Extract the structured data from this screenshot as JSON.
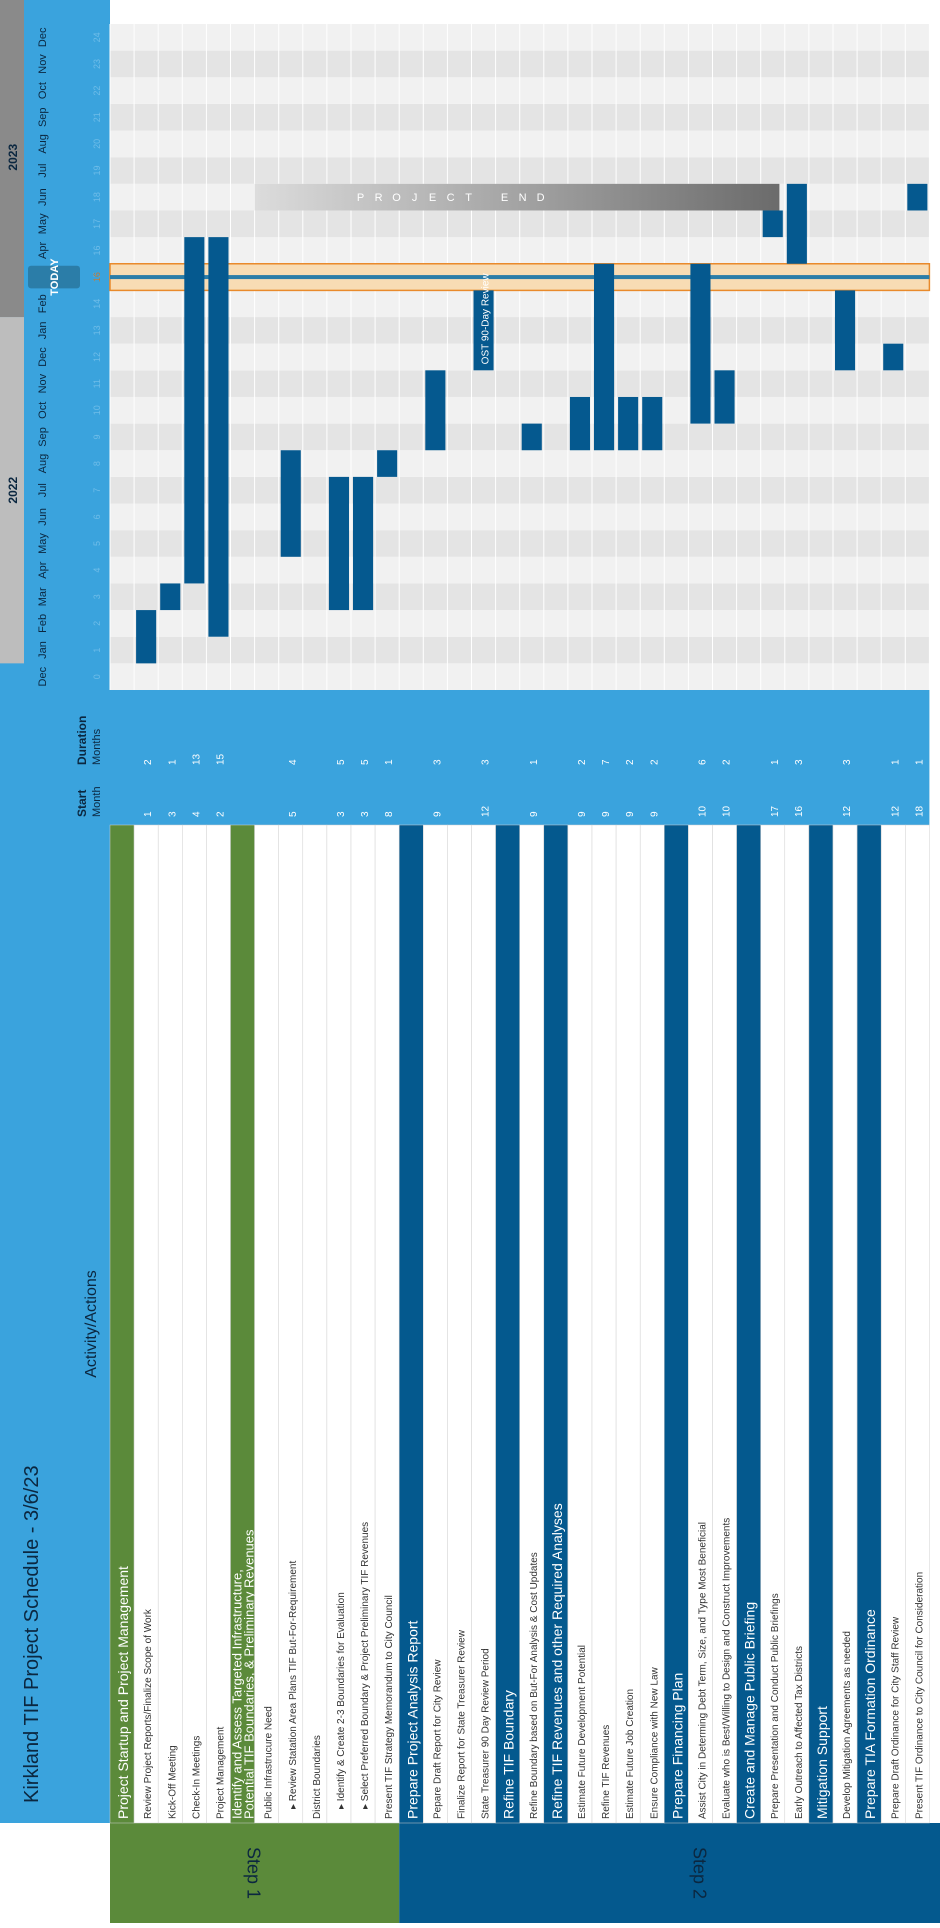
{
  "title": "Kirkland TIF Project Schedule - 3/6/23",
  "column_headers": {
    "activity": "Activity/Actions",
    "start": "Start",
    "start_sub": "Month",
    "duration": "Duration",
    "duration_sub": "Months"
  },
  "steps": [
    {
      "label": "Step 1",
      "color": "#5b8a3a",
      "start_row": 0,
      "end_row": 11
    },
    {
      "label": "Step 2",
      "color": "#04598e",
      "start_row": 12,
      "end_row": 36
    }
  ],
  "years": [
    {
      "label": "2022",
      "from_month": 1,
      "to_month": 13
    },
    {
      "label": "2023",
      "from_month": 14,
      "to_month": 25
    }
  ],
  "months": [
    {
      "name": "Dec",
      "index": "0"
    },
    {
      "name": "Jan",
      "index": "1"
    },
    {
      "name": "Feb",
      "index": "2"
    },
    {
      "name": "Mar",
      "index": "3"
    },
    {
      "name": "Apr",
      "index": "4"
    },
    {
      "name": "May",
      "index": "5"
    },
    {
      "name": "Jun",
      "index": "6"
    },
    {
      "name": "Jul",
      "index": "7"
    },
    {
      "name": "Aug",
      "index": "8"
    },
    {
      "name": "Sep",
      "index": "9"
    },
    {
      "name": "Oct",
      "index": "10"
    },
    {
      "name": "Nov",
      "index": "11"
    },
    {
      "name": "Dec",
      "index": "12"
    },
    {
      "name": "Jan",
      "index": "13"
    },
    {
      "name": "Feb",
      "index": "14"
    },
    {
      "name": "Mar",
      "index": "15"
    },
    {
      "name": "Apr",
      "index": "16"
    },
    {
      "name": "May",
      "index": "17"
    },
    {
      "name": "Jun",
      "index": "18"
    },
    {
      "name": "Jul",
      "index": "19"
    },
    {
      "name": "Aug",
      "index": "20"
    },
    {
      "name": "Sep",
      "index": "21"
    },
    {
      "name": "Oct",
      "index": "22"
    },
    {
      "name": "Nov",
      "index": "23"
    },
    {
      "name": "Dec",
      "index": "24"
    }
  ],
  "today": {
    "label": "TODAY",
    "month_index": 15,
    "marker_value": "16"
  },
  "project_end": {
    "letters": [
      "P",
      "R",
      "O",
      "J",
      "E",
      "C",
      "T",
      "",
      "E",
      "N",
      "D"
    ],
    "from_month": 18
  },
  "rows": [
    {
      "text": "Project Startup and Project Management",
      "kind": "section",
      "color": "#5b8a3a",
      "start": "",
      "duration": ""
    },
    {
      "text": "Review Project Reports/Finalize Scope of Work",
      "kind": "task",
      "start": "1",
      "duration": "2"
    },
    {
      "text": "Kick-Off Meeting",
      "kind": "task",
      "start": "3",
      "duration": "1"
    },
    {
      "text": "Check-In Meetings",
      "kind": "task",
      "start": "4",
      "duration": "13"
    },
    {
      "text": "Project Management",
      "kind": "task",
      "start": "2",
      "duration": "15"
    },
    {
      "text": "Identify and Assess Targeted Infrastructure,",
      "text2": "Potential TIF Boundaries, & Preliminary Revenues",
      "kind": "section2",
      "color": "#5b8a3a",
      "start": "",
      "duration": ""
    },
    {
      "text": "Public Infrastrucure Need",
      "kind": "task",
      "start": "",
      "duration": ""
    },
    {
      "text": "▸ Review Statation Area Plans TIF But-For-Requirement",
      "kind": "task",
      "start": "5",
      "duration": "4"
    },
    {
      "text": "District Boundaries",
      "kind": "task",
      "start": "",
      "duration": ""
    },
    {
      "text": "▸ Identify & Create 2-3 Boundaries for Evaluation",
      "kind": "task",
      "start": "3",
      "duration": "5"
    },
    {
      "text": "▸ Select Preferred Boundary & Project Preliminary TIF Revenues",
      "kind": "task",
      "start": "3",
      "duration": "5"
    },
    {
      "text": "Present TIF Strategy Memorandum to City Council",
      "kind": "task",
      "start": "8",
      "duration": "1"
    },
    {
      "text": "Prepare Project Analysis Report",
      "kind": "section",
      "color": "#04598e",
      "start": "",
      "duration": ""
    },
    {
      "text": "Pepare Draft Report for City Review",
      "kind": "task",
      "start": "9",
      "duration": "3"
    },
    {
      "text": "Finalize Report for State Treasurer Review",
      "kind": "task",
      "start": "",
      "duration": ""
    },
    {
      "text": "State Treasurer 90 Day Review Period",
      "kind": "task",
      "start": "12",
      "duration": "3"
    },
    {
      "text": "Refine TIF Boundary",
      "kind": "section",
      "color": "#04598e",
      "start": "",
      "duration": ""
    },
    {
      "text": "Refine Boundary based on But-For Analysis & Cost Updates",
      "kind": "task",
      "start": "9",
      "duration": "1"
    },
    {
      "text": "Refine TIF Revenues and other Required Analyses",
      "kind": "section",
      "color": "#04598e",
      "start": "",
      "duration": ""
    },
    {
      "text": "Estimate Future Development Potential",
      "kind": "task",
      "start": "9",
      "duration": "2"
    },
    {
      "text": "Refine TIF Revenues",
      "kind": "task",
      "start": "9",
      "duration": "7"
    },
    {
      "text": "Estimate Future Job Creation",
      "kind": "task",
      "start": "9",
      "duration": "2"
    },
    {
      "text": "Ensure Compliance with New Law",
      "kind": "task",
      "start": "9",
      "duration": "2"
    },
    {
      "text": "Prepare Financing Plan",
      "kind": "section",
      "color": "#04598e",
      "start": "",
      "duration": ""
    },
    {
      "text": "Assist City in Determing Debt Term, Size, and Type Most Beneficial",
      "kind": "task",
      "start": "10",
      "duration": "6"
    },
    {
      "text": "Evaluate who is Best/Willing to Design and Construct Improvements",
      "kind": "task",
      "start": "10",
      "duration": "2"
    },
    {
      "text": "Create and Manage Public Briefing",
      "kind": "section",
      "color": "#04598e",
      "start": "",
      "duration": ""
    },
    {
      "text": "Prepare Presentation and Conduct Public Briefings",
      "kind": "task",
      "start": "17",
      "duration": "1"
    },
    {
      "text": "Early Outreach to Affected Tax Districts",
      "kind": "task",
      "start": "16",
      "duration": "3"
    },
    {
      "text": "Mitigation Support",
      "kind": "section",
      "color": "#04598e",
      "start": "",
      "duration": ""
    },
    {
      "text": "Develop Mitigation Agreements as needed",
      "kind": "task",
      "start": "12",
      "duration": "3"
    },
    {
      "text": "Prepare TIA Formation Ordinance",
      "kind": "section",
      "color": "#04598e",
      "start": "",
      "duration": ""
    },
    {
      "text": "Prepare Draft Ordinance for City Staff Review",
      "kind": "task",
      "start": "12",
      "duration": "1"
    },
    {
      "text": "Present TIF Ordinance to City Council for Consideration",
      "kind": "task",
      "start": "18",
      "duration": "1"
    }
  ],
  "bars": [
    {
      "row": 1,
      "start": 1,
      "duration": 2
    },
    {
      "row": 2,
      "start": 3,
      "duration": 1
    },
    {
      "row": 3,
      "start": 4,
      "duration": 13
    },
    {
      "row": 4,
      "start": 2,
      "duration": 15
    },
    {
      "row": 7,
      "start": 5,
      "duration": 4
    },
    {
      "row": 9,
      "start": 3,
      "duration": 5
    },
    {
      "row": 10,
      "start": 3,
      "duration": 5
    },
    {
      "row": 11,
      "start": 8,
      "duration": 1
    },
    {
      "row": 13,
      "start": 9,
      "duration": 3
    },
    {
      "row": 15,
      "start": 12,
      "duration": 3,
      "label": "OST 90-Day Review"
    },
    {
      "row": 17,
      "start": 9,
      "duration": 1
    },
    {
      "row": 19,
      "start": 9,
      "duration": 2
    },
    {
      "row": 20,
      "start": 9,
      "duration": 7
    },
    {
      "row": 21,
      "start": 9,
      "duration": 2
    },
    {
      "row": 22,
      "start": 9,
      "duration": 2
    },
    {
      "row": 24,
      "start": 10,
      "duration": 6
    },
    {
      "row": 25,
      "start": 10,
      "duration": 2
    },
    {
      "row": 27,
      "start": 17,
      "duration": 1
    },
    {
      "row": 28,
      "start": 16,
      "duration": 3
    },
    {
      "row": 30,
      "start": 12,
      "duration": 3
    },
    {
      "row": 32,
      "start": 12,
      "duration": 1
    },
    {
      "row": 33,
      "start": 18,
      "duration": 1
    }
  ],
  "colors": {
    "header_blue": "#3aa3dd",
    "dark_blue": "#04598e",
    "green": "#5b8a3a",
    "bar": "#05598f",
    "today_band": "#f8dcb4",
    "today_line": "#e98a2b",
    "grid_a": "#f1f1f1",
    "grid_b": "#e4e4e4"
  }
}
